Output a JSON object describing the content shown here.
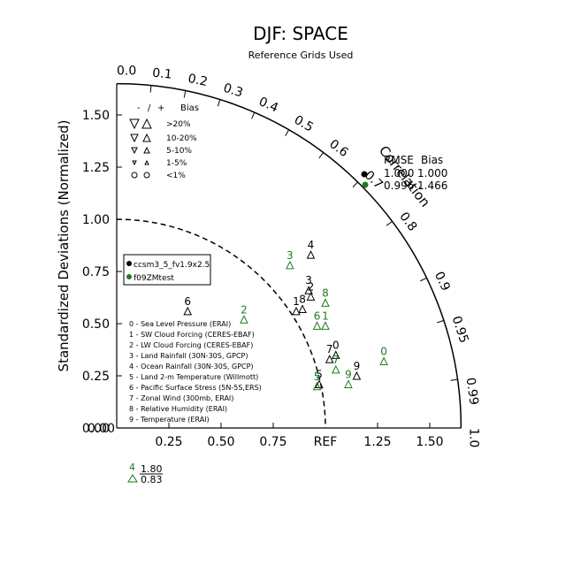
{
  "chart_data": {
    "type": "scatter",
    "title": "DJF: SPACE",
    "subtitle": "Reference Grids Used",
    "ylabel": "Standardized Deviations (Normalized)",
    "correlation_label": "Correlation",
    "ref_label": "REF",
    "ylim": [
      0,
      1.65
    ],
    "std_ticks": [
      "0.00",
      "0.25",
      "0.50",
      "0.75",
      "1.00",
      "1.25",
      "1.50"
    ],
    "x_ticks": [
      "0.25",
      "0.50",
      "0.75",
      "1.25",
      "1.50"
    ],
    "corr_ticks": [
      "0.0",
      "0.1",
      "0.2",
      "0.3",
      "0.4",
      "0.5",
      "0.6",
      "0.7",
      "0.8",
      "0.9",
      "0.95",
      "0.99",
      "1.0"
    ],
    "colors": {
      "ccsm3_5_fv1.9x2.5": "#000000",
      "f09ZMtest": "#1e7b1e"
    },
    "bias_legend": {
      "header": [
        "-",
        "/",
        "+",
        "Bias"
      ],
      "rows": [
        ">20%",
        "10-20%",
        "5-10%",
        "1-5%",
        "<1%"
      ]
    },
    "series_legend": [
      "ccsm3_5_fv1.9x2.5",
      "f09ZMtest"
    ],
    "variables": [
      "0 - Sea Level Pressure (ERAI)",
      "1 - SW Cloud Forcing (CERES-EBAF)",
      "2 - LW Cloud Forcing (CERES-EBAF)",
      "3 - Land Rainfall (30N-30S, GPCP)",
      "4 - Ocean Rainfall (30N-30S, GPCP)",
      "5 - Land 2-m Temperature (Willmott)",
      "6 - Pacific Surface Stress (5N-5S,ERS)",
      "7 - Zonal Wind (300mb, ERAI)",
      "8 - Relative Humidity (ERAI)",
      "9 - Temperature (ERAI)"
    ],
    "rmse_bias": {
      "header": [
        "RMSE",
        "Bias"
      ],
      "rows": [
        [
          "1.000",
          "1.000"
        ],
        [
          "0.996",
          "1.466"
        ]
      ]
    },
    "off_scale": {
      "labels": [
        "4",
        "1.80",
        "0.83"
      ]
    },
    "series": [
      {
        "name": "ccsm3_5_fv1.9x2.5",
        "points": [
          {
            "id": "0",
            "x": 1.05,
            "y": 0.35
          },
          {
            "id": "1",
            "x": 0.86,
            "y": 0.56
          },
          {
            "id": "2",
            "x": 0.93,
            "y": 0.63
          },
          {
            "id": "3",
            "x": 0.92,
            "y": 0.66
          },
          {
            "id": "4",
            "x": 0.93,
            "y": 0.83
          },
          {
            "id": "5",
            "x": 0.97,
            "y": 0.21
          },
          {
            "id": "6",
            "x": 0.34,
            "y": 0.56
          },
          {
            "id": "7",
            "x": 1.02,
            "y": 0.33
          },
          {
            "id": "8",
            "x": 0.89,
            "y": 0.57
          },
          {
            "id": "9",
            "x": 1.15,
            "y": 0.25
          }
        ]
      },
      {
        "name": "f09ZMtest",
        "points": [
          {
            "id": "0",
            "x": 1.28,
            "y": 0.32
          },
          {
            "id": "1",
            "x": 1.0,
            "y": 0.49
          },
          {
            "id": "2",
            "x": 0.61,
            "y": 0.52
          },
          {
            "id": "3",
            "x": 0.83,
            "y": 0.78
          },
          {
            "id": "5",
            "x": 0.96,
            "y": 0.2
          },
          {
            "id": "6",
            "x": 0.96,
            "y": 0.49
          },
          {
            "id": "7",
            "x": 1.05,
            "y": 0.28
          },
          {
            "id": "8",
            "x": 1.0,
            "y": 0.6
          },
          {
            "id": "9",
            "x": 1.11,
            "y": 0.21
          }
        ]
      }
    ]
  }
}
